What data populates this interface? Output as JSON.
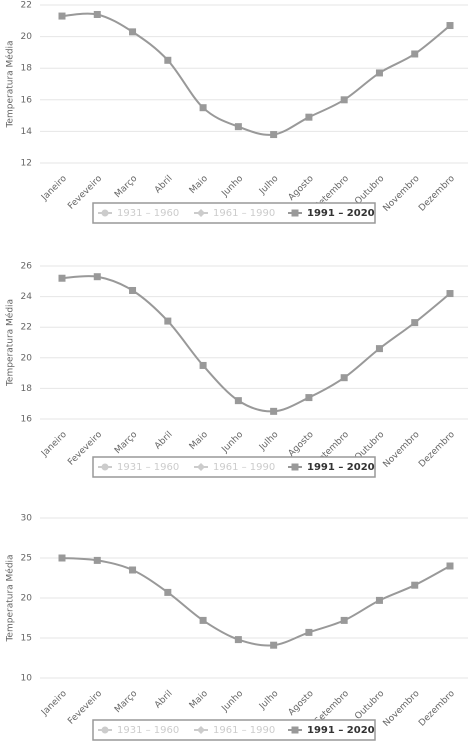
{
  "chart_data": [
    {
      "type": "line",
      "y_label": "Temperatura Média",
      "categories": [
        "Janeiro",
        "Feveveiro",
        "Março",
        "Abril",
        "Maio",
        "Junho",
        "Julho",
        "Agosto",
        "Setembro",
        "Outubro",
        "Novembro",
        "Dezembro"
      ],
      "ylim": [
        12,
        22
      ],
      "yticks": [
        12,
        14,
        16,
        18,
        20,
        22
      ],
      "grid": true,
      "series": [
        {
          "name": "1931 – 1960",
          "visible": false,
          "marker": "circle"
        },
        {
          "name": "1961 – 1990",
          "visible": false,
          "marker": "diamond"
        },
        {
          "name": "1991 – 2020",
          "visible": true,
          "marker": "square",
          "color": "#999999",
          "values": [
            21.3,
            21.4,
            20.3,
            18.5,
            15.5,
            14.3,
            13.8,
            14.9,
            16.0,
            17.7,
            18.9,
            20.7
          ]
        }
      ]
    },
    {
      "type": "line",
      "y_label": "Temperatura Média",
      "categories": [
        "Janeiro",
        "Feveveiro",
        "Março",
        "Abril",
        "Maio",
        "Junho",
        "Julho",
        "Agosto",
        "Setembro",
        "Outubro",
        "Novembro",
        "Dezembro"
      ],
      "ylim": [
        16,
        26
      ],
      "yticks": [
        16,
        18,
        20,
        22,
        24,
        26
      ],
      "grid": true,
      "series": [
        {
          "name": "1931 – 1960",
          "visible": false,
          "marker": "circle"
        },
        {
          "name": "1961 – 1990",
          "visible": false,
          "marker": "diamond"
        },
        {
          "name": "1991 – 2020",
          "visible": true,
          "marker": "square",
          "color": "#999999",
          "values": [
            25.2,
            25.3,
            24.4,
            22.4,
            19.5,
            17.2,
            16.5,
            17.4,
            18.7,
            20.6,
            22.3,
            24.2
          ]
        }
      ]
    },
    {
      "type": "line",
      "y_label": "Temperatura Média",
      "categories": [
        "Janeiro",
        "Feveveiro",
        "Março",
        "Abril",
        "Maio",
        "Junho",
        "Julho",
        "Agosto",
        "Setembro",
        "Outubro",
        "Novembro",
        "Dezembro"
      ],
      "ylim": [
        10,
        30
      ],
      "yticks": [
        10,
        15,
        20,
        25,
        30
      ],
      "grid": true,
      "series": [
        {
          "name": "1931 – 1960",
          "visible": false,
          "marker": "circle"
        },
        {
          "name": "1961 – 1990",
          "visible": false,
          "marker": "diamond"
        },
        {
          "name": "1991 – 2020",
          "visible": true,
          "marker": "square",
          "color": "#999999",
          "values": [
            25.0,
            24.7,
            23.5,
            20.7,
            17.2,
            14.8,
            14.1,
            15.7,
            17.2,
            19.7,
            21.6,
            24.0
          ]
        }
      ]
    }
  ]
}
